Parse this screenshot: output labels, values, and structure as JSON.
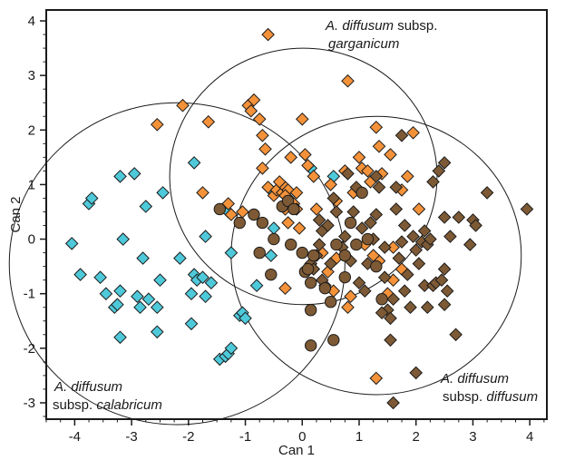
{
  "chart_data": {
    "type": "scatter",
    "xlabel": "Can 1",
    "ylabel": "Can 2",
    "xlim": [
      -4.5,
      4.3
    ],
    "ylim": [
      -3.3,
      4.2
    ],
    "x_ticks": [
      -4,
      -3,
      -2,
      -1,
      0,
      1,
      2,
      3,
      4
    ],
    "y_ticks": [
      -3,
      -2,
      -1,
      0,
      1,
      2,
      3,
      4
    ],
    "colors": {
      "calabricum": "#4ec9da",
      "garganicum": "#f4923a",
      "diffusum": "#7d5a35",
      "edge": "#1a1a1a"
    },
    "series": [
      {
        "key": "calabricum",
        "marker": "diamond",
        "color": "#4ec9da",
        "points": [
          [
            -4.05,
            -0.08
          ],
          [
            -3.9,
            -0.65
          ],
          [
            -3.75,
            0.65
          ],
          [
            -3.7,
            0.75
          ],
          [
            -3.55,
            -0.7
          ],
          [
            -3.45,
            -1.0
          ],
          [
            -3.3,
            -1.25
          ],
          [
            -3.25,
            -1.2
          ],
          [
            -3.2,
            1.15
          ],
          [
            -3.2,
            -0.95
          ],
          [
            -3.2,
            -1.8
          ],
          [
            -3.15,
            0.0
          ],
          [
            -2.95,
            1.2
          ],
          [
            -2.9,
            -1.05
          ],
          [
            -2.85,
            -1.25
          ],
          [
            -2.8,
            -0.35
          ],
          [
            -2.75,
            0.6
          ],
          [
            -2.7,
            -1.1
          ],
          [
            -2.55,
            -1.7
          ],
          [
            -2.55,
            -1.25
          ],
          [
            -2.5,
            -0.75
          ],
          [
            -2.45,
            0.85
          ],
          [
            -2.15,
            -0.35
          ],
          [
            -1.95,
            -1.55
          ],
          [
            -1.9,
            1.4
          ],
          [
            -1.95,
            -1.0
          ],
          [
            -1.9,
            -0.65
          ],
          [
            -1.85,
            -0.75
          ],
          [
            -1.75,
            -0.7
          ],
          [
            -1.7,
            -1.05
          ],
          [
            -1.7,
            0.05
          ],
          [
            -1.6,
            -0.8
          ],
          [
            -1.45,
            -2.2
          ],
          [
            -1.35,
            -2.15
          ],
          [
            -1.3,
            -2.1
          ],
          [
            -1.25,
            -2.0
          ],
          [
            -1.25,
            -0.25
          ],
          [
            -1.3,
            0.5
          ],
          [
            -1.1,
            -1.4
          ],
          [
            -1.05,
            -1.35
          ],
          [
            -1.0,
            -1.45
          ],
          [
            -0.8,
            -0.85
          ],
          [
            -0.55,
            0.9
          ],
          [
            -0.5,
            0.2
          ],
          [
            -0.55,
            -0.3
          ],
          [
            0.15,
            1.3
          ],
          [
            0.55,
            1.15
          ]
        ]
      },
      {
        "key": "garganicum",
        "marker": "diamond",
        "color": "#f4923a",
        "points": [
          [
            -2.55,
            2.1
          ],
          [
            -2.1,
            2.45
          ],
          [
            -1.65,
            2.15
          ],
          [
            -1.75,
            0.85
          ],
          [
            -1.3,
            0.65
          ],
          [
            -1.25,
            0.45
          ],
          [
            -1.05,
            0.5
          ],
          [
            -0.95,
            2.45
          ],
          [
            -0.9,
            2.35
          ],
          [
            -0.85,
            2.55
          ],
          [
            -0.75,
            2.2
          ],
          [
            -0.7,
            1.9
          ],
          [
            -0.65,
            1.65
          ],
          [
            -0.7,
            1.3
          ],
          [
            -0.6,
            0.95
          ],
          [
            -0.5,
            0.8
          ],
          [
            -0.45,
            0.9
          ],
          [
            -0.35,
            0.85
          ],
          [
            -0.3,
            0.95
          ],
          [
            -0.25,
            0.9
          ],
          [
            -0.2,
            0.7
          ],
          [
            -0.15,
            0.65
          ],
          [
            -0.3,
            0.55
          ],
          [
            -0.1,
            0.85
          ],
          [
            -0.6,
            3.75
          ],
          [
            -0.4,
            1.05
          ],
          [
            -0.3,
            0.8
          ],
          [
            -0.25,
            0.3
          ],
          [
            -0.05,
            0.2
          ],
          [
            -0.3,
            -0.9
          ],
          [
            -0.2,
            1.5
          ],
          [
            -0.1,
            0.55
          ],
          [
            0.0,
            2.2
          ],
          [
            0.05,
            1.55
          ],
          [
            0.1,
            1.35
          ],
          [
            0.2,
            1.15
          ],
          [
            0.25,
            0.55
          ],
          [
            0.5,
            1.0
          ],
          [
            0.6,
            0.7
          ],
          [
            0.75,
            1.25
          ],
          [
            0.8,
            2.9
          ],
          [
            0.9,
            0.85
          ],
          [
            1.0,
            1.5
          ],
          [
            1.05,
            1.3
          ],
          [
            1.15,
            1.25
          ],
          [
            1.2,
            1.05
          ],
          [
            1.3,
            2.05
          ],
          [
            1.35,
            1.7
          ],
          [
            1.4,
            1.2
          ],
          [
            1.55,
            1.55
          ],
          [
            1.75,
            0.9
          ],
          [
            1.85,
            1.15
          ],
          [
            1.95,
            1.95
          ],
          [
            2.05,
            0.55
          ],
          [
            1.1,
            -0.1
          ],
          [
            1.35,
            -0.4
          ],
          [
            1.6,
            -0.15
          ],
          [
            0.6,
            -0.35
          ],
          [
            0.45,
            -0.6
          ],
          [
            0.55,
            -0.95
          ],
          [
            1.25,
            -0.3
          ],
          [
            1.3,
            -2.55
          ],
          [
            1.5,
            -1.0
          ],
          [
            1.6,
            -0.75
          ],
          [
            1.75,
            -0.55
          ],
          [
            0.35,
            -0.25
          ],
          [
            0.4,
            -0.85
          ],
          [
            0.8,
            -1.25
          ],
          [
            0.85,
            -1.05
          ]
        ]
      },
      {
        "key": "diffusum-diamond",
        "marker": "diamond",
        "color": "#7d5a35",
        "points": [
          [
            0.3,
            0.35
          ],
          [
            0.35,
            0.15
          ],
          [
            0.45,
            0.25
          ],
          [
            0.5,
            -0.45
          ],
          [
            0.7,
            -0.15
          ],
          [
            0.75,
            0.05
          ],
          [
            0.85,
            -0.4
          ],
          [
            0.9,
            0.5
          ],
          [
            0.95,
            0.95
          ],
          [
            1.05,
            0.2
          ],
          [
            1.15,
            -0.45
          ],
          [
            1.2,
            0.3
          ],
          [
            1.25,
            0.0
          ],
          [
            1.3,
            1.15
          ],
          [
            1.3,
            0.45
          ],
          [
            1.35,
            0.95
          ],
          [
            1.45,
            -0.15
          ],
          [
            1.45,
            -0.7
          ],
          [
            1.5,
            -1.3
          ],
          [
            1.55,
            -1.45
          ],
          [
            1.55,
            -1.85
          ],
          [
            1.6,
            -1.1
          ],
          [
            1.65,
            0.95
          ],
          [
            1.65,
            0.55
          ],
          [
            1.7,
            -0.35
          ],
          [
            1.75,
            -0.05
          ],
          [
            1.8,
            0.25
          ],
          [
            1.8,
            -0.95
          ],
          [
            1.85,
            -0.65
          ],
          [
            1.9,
            -1.25
          ],
          [
            1.95,
            0.05
          ],
          [
            2.0,
            -0.2
          ],
          [
            2.05,
            -0.45
          ],
          [
            2.1,
            -0.05
          ],
          [
            2.15,
            0.15
          ],
          [
            2.15,
            -0.85
          ],
          [
            2.2,
            -0.1
          ],
          [
            2.2,
            -1.25
          ],
          [
            2.25,
            0.0
          ],
          [
            2.3,
            -0.85
          ],
          [
            2.35,
            -0.8
          ],
          [
            2.4,
            1.25
          ],
          [
            2.45,
            -0.75
          ],
          [
            2.5,
            1.4
          ],
          [
            2.5,
            0.4
          ],
          [
            2.5,
            -0.55
          ],
          [
            2.55,
            -0.95
          ],
          [
            2.6,
            0.05
          ],
          [
            2.7,
            -1.75
          ],
          [
            2.75,
            0.4
          ],
          [
            2.95,
            -0.1
          ],
          [
            3.0,
            0.35
          ],
          [
            3.05,
            0.25
          ],
          [
            3.25,
            0.85
          ],
          [
            3.95,
            0.55
          ],
          [
            1.75,
            1.9
          ],
          [
            1.6,
            -3.0
          ],
          [
            2.3,
            1.05
          ],
          [
            0.8,
            1.2
          ],
          [
            0.55,
            0.75
          ],
          [
            0.6,
            0.5
          ],
          [
            0.3,
            -0.1
          ],
          [
            0.25,
            -0.3
          ],
          [
            0.15,
            -0.45
          ],
          [
            0.2,
            -0.55
          ],
          [
            0.35,
            -0.75
          ],
          [
            2.5,
            -1.2
          ],
          [
            1.1,
            -0.95
          ],
          [
            1.4,
            -1.35
          ],
          [
            2.0,
            -2.45
          ],
          [
            1.0,
            -0.8
          ]
        ]
      },
      {
        "key": "diffusum-circle",
        "marker": "circle",
        "color": "#7d5a35",
        "points": [
          [
            -1.45,
            0.55
          ],
          [
            -1.1,
            0.3
          ],
          [
            -0.85,
            0.45
          ],
          [
            -0.75,
            -0.25
          ],
          [
            -0.7,
            0.3
          ],
          [
            -0.55,
            -0.65
          ],
          [
            -0.5,
            0.0
          ],
          [
            -0.35,
            0.6
          ],
          [
            -0.25,
            0.7
          ],
          [
            -0.2,
            -0.1
          ],
          [
            -0.15,
            0.55
          ],
          [
            0.0,
            -0.25
          ],
          [
            0.05,
            -0.6
          ],
          [
            0.1,
            -0.55
          ],
          [
            0.15,
            -0.8
          ],
          [
            0.15,
            -1.3
          ],
          [
            0.15,
            -1.95
          ],
          [
            0.4,
            -0.9
          ],
          [
            0.5,
            -1.15
          ],
          [
            0.55,
            -1.85
          ],
          [
            0.75,
            -0.3
          ],
          [
            0.85,
            0.3
          ],
          [
            0.95,
            -0.1
          ],
          [
            1.05,
            0.85
          ],
          [
            1.15,
            0.0
          ],
          [
            1.3,
            -0.5
          ],
          [
            1.4,
            -1.1
          ],
          [
            0.75,
            -0.7
          ],
          [
            0.6,
            -0.1
          ],
          [
            0.2,
            -0.3
          ]
        ]
      }
    ],
    "ellipses": [
      {
        "key": "calabricum",
        "cx": -2.2,
        "cy": -0.45,
        "r": 2.95
      },
      {
        "key": "garganicum",
        "cx": 0.02,
        "cy": 1.15,
        "r": 2.35
      },
      {
        "key": "diffusum",
        "cx": 1.3,
        "cy": -0.3,
        "r": 2.55
      }
    ],
    "annotations": [
      {
        "key": "garganicum",
        "line1_italic": "A. diffusum",
        "line1_rest": " subsp.",
        "line2_prefix": "",
        "line2_italic": "garganicum"
      },
      {
        "key": "calabricum",
        "line1_italic": "A. diffusum",
        "line1_rest": "",
        "line2_prefix": "subsp. ",
        "line2_italic": "calabricum"
      },
      {
        "key": "diffusum",
        "line1_italic": "A. diffusum",
        "line1_rest": "",
        "line2_prefix": "subsp. ",
        "line2_italic": "diffusum"
      }
    ]
  }
}
